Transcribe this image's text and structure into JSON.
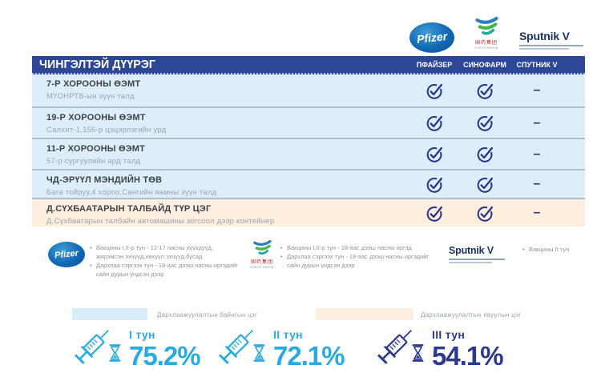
{
  "brand": {
    "pfizer": "Pfizer",
    "sinopharm_cn": "国药集团",
    "sinopharm_en": "SINOPHARM",
    "sputnik": "Sputnik V"
  },
  "table": {
    "title": "ЧИНГЭЛТЭЙ ДҮҮРЭГ",
    "columns": [
      "ПФАЙЗЕР",
      "СИНОФАРМ",
      "СПУТНИК V"
    ],
    "dash_glyph": "–",
    "rows": [
      {
        "name": "7-Р ХОРООНЫ ӨЭМТ",
        "address": "МҮОНРТВ-ын зүүн талд",
        "type": "permanent",
        "marks": [
          "check",
          "check",
          "dash"
        ]
      },
      {
        "name": "19-Р ХОРООНЫ ӨЭМТ",
        "address": "Салхит-1,155-р цэцэрлэгийн урд",
        "type": "permanent",
        "marks": [
          "check",
          "check",
          "dash"
        ]
      },
      {
        "name": "11-Р ХОРООНЫ ӨЭМТ",
        "address": "57-р сургуулийн ард талд",
        "type": "permanent",
        "marks": [
          "check",
          "check",
          "dash"
        ]
      },
      {
        "name": "ЧД-ЭРҮҮЛ МЭНДИЙН ТӨВ",
        "address": "Бага тойруу,4 хороо,Сангийн яамны зүүн талд",
        "type": "permanent",
        "marks": [
          "check",
          "check",
          "dash"
        ]
      },
      {
        "name": "Д.СҮХБААТАРЫН ТАЛБАЙД ТҮР ЦЭГ",
        "address": "Д.Сүхбаатарын талбайн автомашины зогсоол дээр контейнер",
        "type": "mobile",
        "marks": [
          "check",
          "check",
          "dash"
        ]
      }
    ]
  },
  "notes": {
    "pfizer": [
      "Вакцины I,II-р тун - 12-17 насны хүүхдүүд, жирэмсэн эхчүүд,хөхүүл эхчүүд,бусад",
      "Дархлаа сэргээх тун - 18-аас дээш насны иргэдийг сайн дурын үндсэн дээр"
    ],
    "sinopharm": [
      "Вакцины I,II-р тун - 18-аас дээш насны иргэд",
      "Дархлаа сэргээх тун - 18-аас дээш насны иргэдийг сайн дурын үндсэн дээр"
    ],
    "sputnik": [
      "Вакцины II тун"
    ]
  },
  "legend": {
    "permanent": "Дархлаажуулалтын байнгын цэг",
    "mobile": "Дархлаажуулалтын явуулын цэг"
  },
  "stats": [
    {
      "label": "I тун",
      "value": "75.2%",
      "color": "#29abe2"
    },
    {
      "label": "II тун",
      "value": "72.1%",
      "color": "#29abe2"
    },
    {
      "label": "III тун",
      "value": "54.1%",
      "color": "#2b3990"
    }
  ],
  "colors": {
    "header_bg": "#2c4795",
    "row_blue": "#ddeefb",
    "row_cream": "#fdeede",
    "check_mark": "#27348b",
    "accent_light": "#29abe2",
    "accent_dark": "#2b3990",
    "swatch_permanent": "#d9ecfa",
    "swatch_mobile": "#fcefdf"
  }
}
